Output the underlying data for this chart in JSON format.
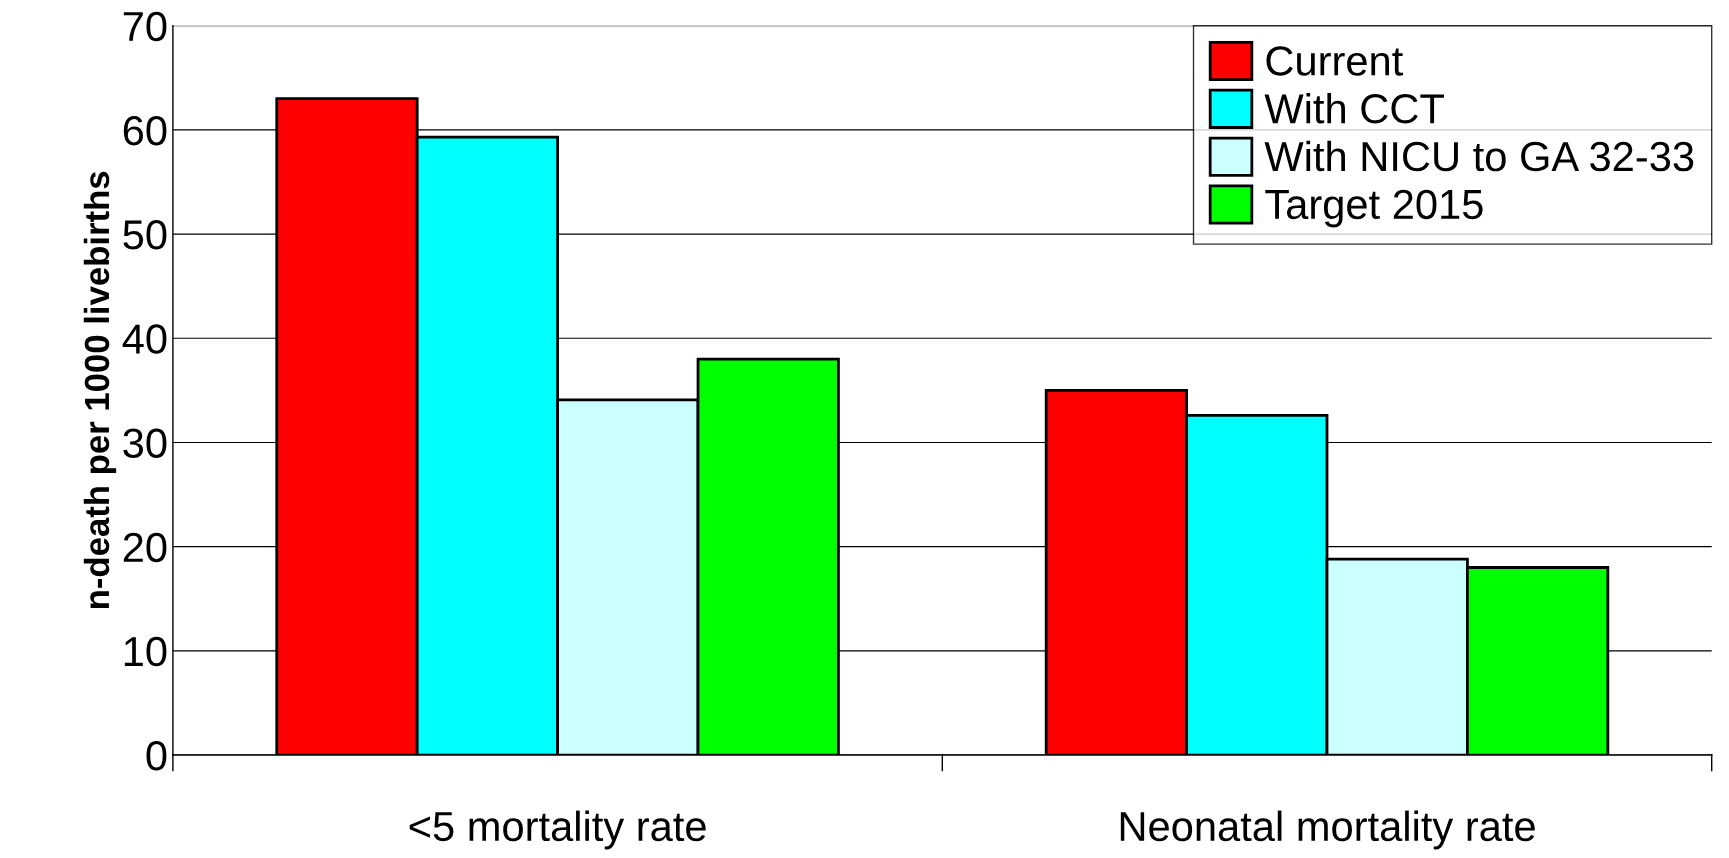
{
  "chart_data": {
    "type": "bar",
    "ylabel": "n-death per 1000 livebirths",
    "categories": [
      "<5 mortality rate",
      "Neonatal mortality rate"
    ],
    "series": [
      {
        "name": "Current",
        "color": "#ff0000",
        "values": [
          63,
          35
        ]
      },
      {
        "name": "With CCT",
        "color": "#00ffff",
        "values": [
          59.3,
          32.6
        ]
      },
      {
        "name": "With NICU to GA 32-33",
        "color": "#ccffff",
        "values": [
          34.1,
          18.8
        ]
      },
      {
        "name": "Target 2015",
        "color": "#00ff00",
        "values": [
          38,
          18
        ]
      }
    ],
    "ylim": [
      0,
      70
    ],
    "yticks": [
      0,
      10,
      20,
      30,
      40,
      50,
      60,
      70
    ],
    "grid": "y",
    "legend": "top right"
  }
}
